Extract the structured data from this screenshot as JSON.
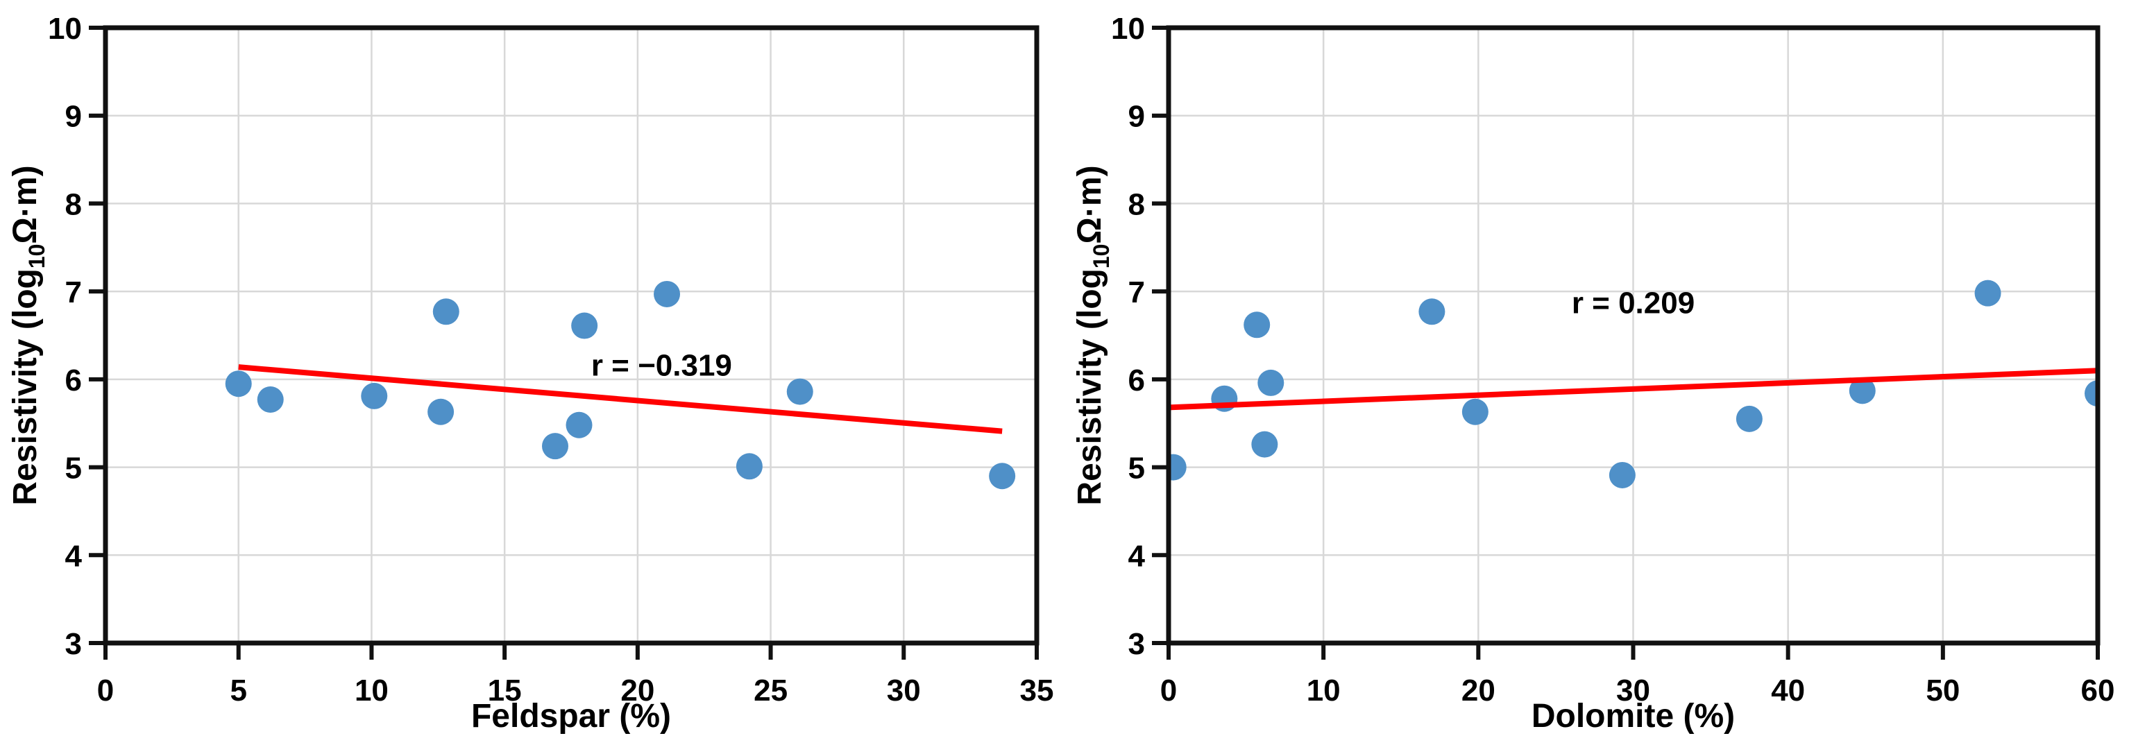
{
  "figure": {
    "description": "Two scatter plots of resistivity versus mineral content with linear trend lines"
  },
  "style": {
    "background": "#ffffff",
    "marker_color": "#4f90c8",
    "trend_color": "#ff0000",
    "grid_color": "#d8d8d8",
    "frame_color": "#111111",
    "text_color": "#000000"
  },
  "chart_data": [
    {
      "type": "scatter",
      "title": "",
      "xlabel": "Feldspar (%)",
      "ylabel": "Resistivity (log10Ω·m)",
      "ylabel_rich": {
        "pre": "Resistivity (log",
        "sub": "10",
        "post": "Ω·m)"
      },
      "xlim": [
        0,
        35
      ],
      "ylim": [
        3,
        10
      ],
      "xticks": [
        0,
        5,
        10,
        15,
        20,
        25,
        30,
        35
      ],
      "yticks": [
        3,
        4,
        5,
        6,
        7,
        8,
        9,
        10
      ],
      "grid": true,
      "legend_position": "none",
      "points": [
        [
          5.0,
          5.95
        ],
        [
          6.2,
          5.77
        ],
        [
          10.1,
          5.81
        ],
        [
          12.6,
          5.63
        ],
        [
          12.8,
          6.77
        ],
        [
          16.9,
          5.24
        ],
        [
          17.8,
          5.48
        ],
        [
          18.0,
          6.61
        ],
        [
          21.1,
          6.97
        ],
        [
          24.2,
          5.01
        ],
        [
          26.1,
          5.86
        ],
        [
          33.7,
          4.9
        ]
      ],
      "trendline": {
        "x1": 5.0,
        "y1": 6.14,
        "x2": 33.7,
        "y2": 5.41
      },
      "annotation": {
        "text": "r = −0.319",
        "x": 20.9,
        "y": 6.17
      }
    },
    {
      "type": "scatter",
      "title": "",
      "xlabel": "Dolomite (%)",
      "ylabel": "Resistivity (log10Ω·m)",
      "ylabel_rich": {
        "pre": "Resistivity (log",
        "sub": "10",
        "post": "Ω·m)"
      },
      "xlim": [
        0,
        60
      ],
      "ylim": [
        3,
        10
      ],
      "xticks": [
        0,
        10,
        20,
        30,
        40,
        50,
        60
      ],
      "yticks": [
        3,
        4,
        5,
        6,
        7,
        8,
        9,
        10
      ],
      "grid": true,
      "legend_position": "none",
      "points": [
        [
          0.3,
          5.0
        ],
        [
          3.6,
          5.78
        ],
        [
          5.7,
          6.62
        ],
        [
          6.6,
          5.96
        ],
        [
          6.2,
          5.26
        ],
        [
          17.0,
          6.77
        ],
        [
          19.8,
          5.63
        ],
        [
          29.3,
          4.91
        ],
        [
          37.5,
          5.55
        ],
        [
          44.8,
          5.87
        ],
        [
          52.9,
          6.98
        ],
        [
          60.0,
          5.84
        ]
      ],
      "trendline": {
        "x1": 0.0,
        "y1": 5.68,
        "x2": 60.0,
        "y2": 6.1
      },
      "annotation": {
        "text": "r = 0.209",
        "x": 30.0,
        "y": 6.88
      }
    }
  ]
}
